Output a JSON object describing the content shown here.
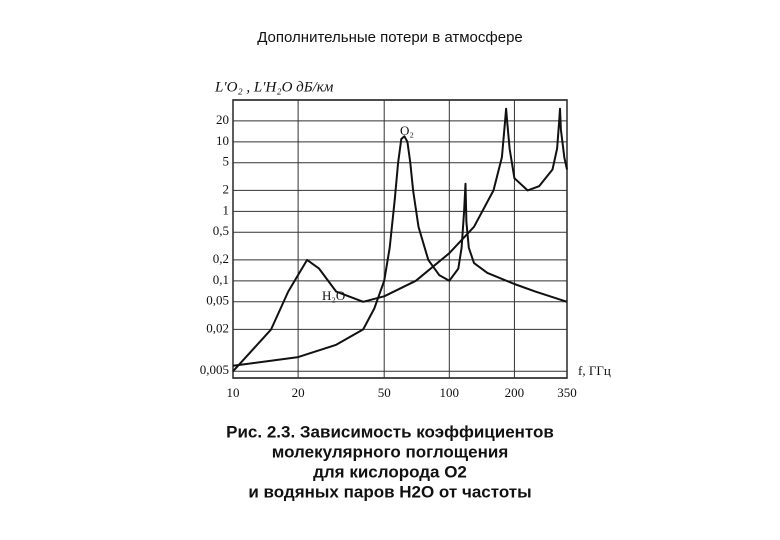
{
  "chart_data": {
    "type": "line",
    "title": "Дополнительные потери в атмосфере",
    "y_label": "L′O₂ , L′H₂O дБ/км",
    "x_label": "f, ГГц",
    "log_x": true,
    "log_y": true,
    "grid": true,
    "xlim": [
      10,
      350
    ],
    "xticks": [
      10,
      20,
      50,
      100,
      200,
      350
    ],
    "ylim": [
      0.004,
      40
    ],
    "yticks": [
      20,
      10,
      5,
      2,
      1,
      {
        "value": 0.5,
        "label": "0,5"
      },
      {
        "value": 0.2,
        "label": "0,2"
      },
      {
        "value": 0.1,
        "label": "0,1"
      },
      {
        "value": 0.05,
        "label": "0,05"
      },
      {
        "value": 0.02,
        "label": "0,02"
      },
      {
        "value": 0.005,
        "label": "0,005"
      }
    ],
    "series": [
      {
        "name": "O₂",
        "color": "#111111",
        "x": [
          10,
          20,
          30,
          40,
          45,
          50,
          53,
          56,
          58,
          60,
          62,
          64,
          66,
          68,
          72,
          80,
          90,
          100,
          110,
          114,
          117,
          118.75,
          120,
          123,
          130,
          150,
          200,
          250,
          350
        ],
        "values": [
          0.006,
          0.008,
          0.012,
          0.02,
          0.04,
          0.1,
          0.3,
          1.5,
          5,
          11,
          12,
          10,
          5,
          2,
          0.6,
          0.2,
          0.12,
          0.1,
          0.15,
          0.3,
          1,
          2.5,
          0.7,
          0.3,
          0.18,
          0.13,
          0.09,
          0.07,
          0.05
        ]
      },
      {
        "name": "H₂O",
        "color": "#111111",
        "x": [
          10,
          15,
          18,
          22,
          25,
          30,
          40,
          50,
          70,
          100,
          130,
          160,
          175,
          181,
          183,
          185,
          190,
          200,
          230,
          260,
          300,
          315,
          322,
          325,
          328,
          340,
          350
        ],
        "values": [
          0.005,
          0.02,
          0.07,
          0.2,
          0.15,
          0.07,
          0.05,
          0.06,
          0.1,
          0.25,
          0.6,
          2,
          6,
          20,
          30,
          20,
          8,
          3,
          2,
          2.3,
          4,
          8,
          20,
          30,
          15,
          6,
          4
        ]
      }
    ],
    "caption": [
      "Рис. 2.3. Зависимость коэффициентов",
      "молекулярного поглощения",
      "для кислорода О2",
      "и водяных паров Н2О от частоты"
    ]
  }
}
